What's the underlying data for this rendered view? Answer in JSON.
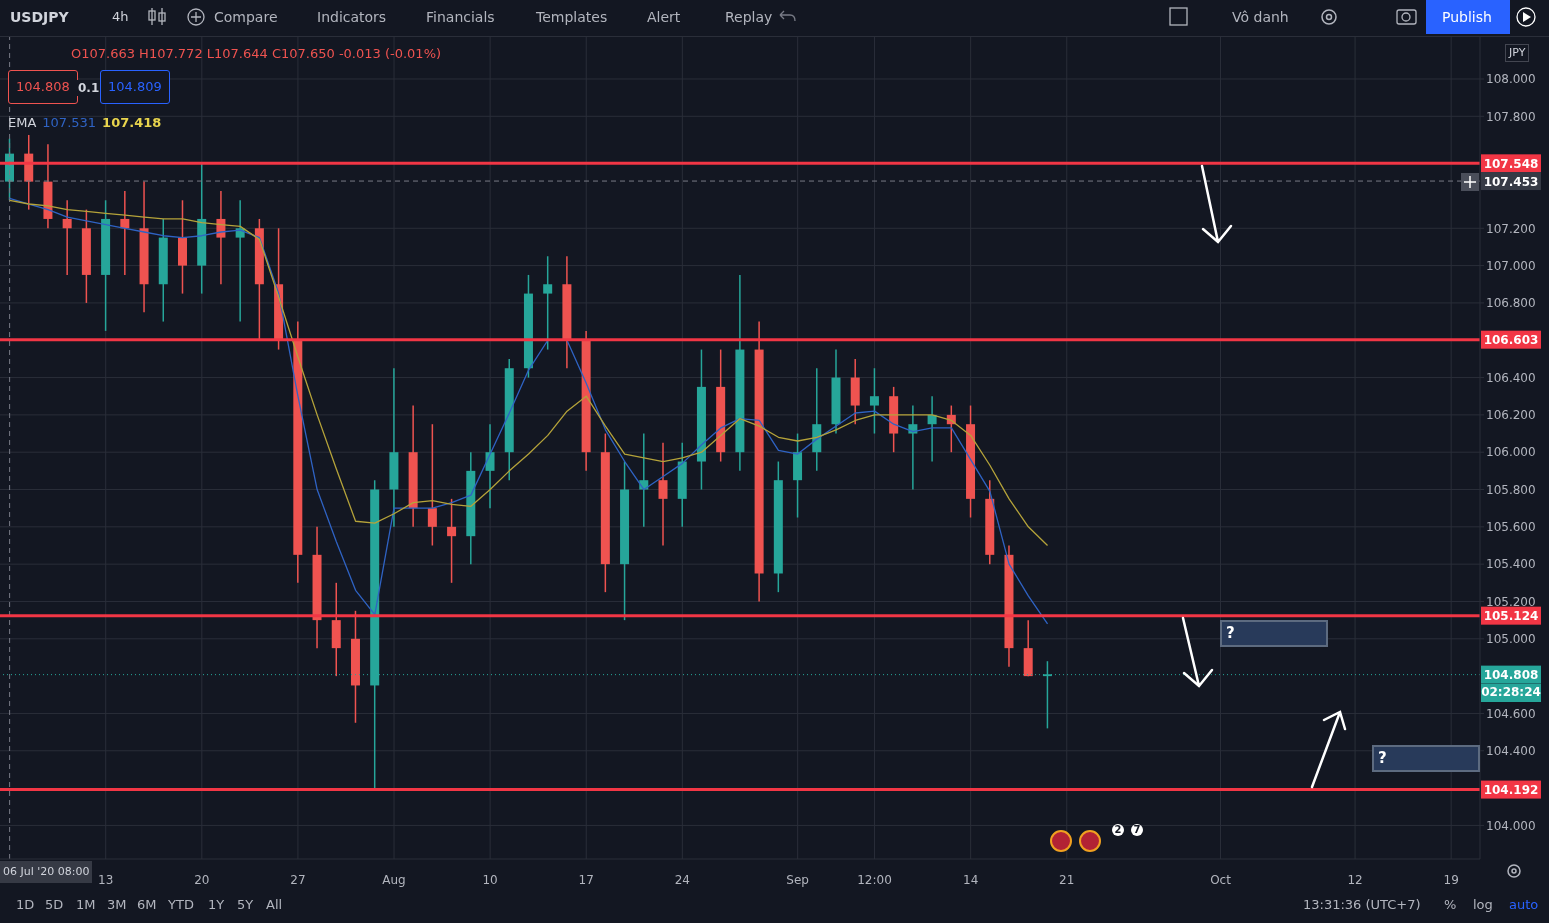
{
  "chart_data": {
    "type": "candlestick",
    "categories": [
      null,
      null,
      null,
      null,
      null,
      "13",
      null,
      null,
      null,
      null,
      "20",
      null,
      null,
      null,
      null,
      "27",
      null,
      null,
      null,
      null,
      "Aug",
      null,
      null,
      null,
      null,
      "10",
      null,
      null,
      null,
      null,
      "17",
      null,
      null,
      null,
      null,
      "24",
      null,
      null,
      null,
      null,
      null,
      "Sep",
      null,
      null,
      null,
      "12:00",
      null,
      null,
      null,
      null,
      "14",
      null,
      null,
      null,
      null,
      "21",
      null,
      null,
      null,
      null,
      null,
      null,
      null,
      "Oct",
      null,
      null,
      null,
      null,
      null,
      null,
      "12",
      null,
      null,
      null,
      null,
      "19",
      null
    ],
    "ohlc": [
      [
        107.45,
        107.68,
        107.35,
        107.6
      ],
      [
        107.6,
        107.7,
        107.3,
        107.45
      ],
      [
        107.45,
        107.65,
        107.2,
        107.25
      ],
      [
        107.25,
        107.35,
        106.95,
        107.2
      ],
      [
        107.2,
        107.3,
        106.8,
        106.95
      ],
      [
        106.95,
        107.35,
        106.65,
        107.25
      ],
      [
        107.25,
        107.4,
        106.95,
        107.2
      ],
      [
        107.2,
        107.45,
        106.75,
        106.9
      ],
      [
        106.9,
        107.25,
        106.7,
        107.15
      ],
      [
        107.15,
        107.35,
        106.85,
        107.0
      ],
      [
        107.0,
        107.55,
        106.85,
        107.25
      ],
      [
        107.25,
        107.4,
        106.9,
        107.15
      ],
      [
        107.15,
        107.35,
        106.7,
        107.2
      ],
      [
        107.2,
        107.25,
        106.6,
        106.9
      ],
      [
        106.9,
        107.2,
        106.55,
        106.6
      ],
      [
        106.6,
        106.7,
        105.3,
        105.45
      ],
      [
        105.45,
        105.6,
        104.95,
        105.1
      ],
      [
        105.1,
        105.3,
        104.8,
        104.95
      ],
      [
        105.0,
        105.15,
        104.55,
        104.75
      ],
      [
        104.75,
        105.85,
        104.19,
        105.8
      ],
      [
        105.8,
        106.45,
        105.6,
        106.0
      ],
      [
        106.0,
        106.25,
        105.6,
        105.7
      ],
      [
        105.7,
        106.15,
        105.5,
        105.6
      ],
      [
        105.6,
        105.75,
        105.3,
        105.55
      ],
      [
        105.55,
        106.0,
        105.4,
        105.9
      ],
      [
        105.9,
        106.15,
        105.7,
        106.0
      ],
      [
        106.0,
        106.5,
        105.85,
        106.45
      ],
      [
        106.45,
        106.95,
        106.4,
        106.85
      ],
      [
        106.85,
        107.05,
        106.55,
        106.9
      ],
      [
        106.9,
        107.05,
        106.45,
        106.6
      ],
      [
        106.6,
        106.65,
        105.9,
        106.0
      ],
      [
        106.0,
        106.1,
        105.25,
        105.4
      ],
      [
        105.4,
        105.95,
        105.1,
        105.8
      ],
      [
        105.8,
        106.1,
        105.6,
        105.85
      ],
      [
        105.85,
        106.05,
        105.5,
        105.75
      ],
      [
        105.75,
        106.05,
        105.6,
        105.95
      ],
      [
        105.95,
        106.55,
        105.8,
        106.35
      ],
      [
        106.35,
        106.55,
        105.95,
        106.0
      ],
      [
        106.0,
        106.95,
        105.9,
        106.55
      ],
      [
        106.55,
        106.7,
        105.2,
        105.35
      ],
      [
        105.35,
        105.95,
        105.25,
        105.85
      ],
      [
        105.85,
        106.1,
        105.65,
        106.0
      ],
      [
        106.0,
        106.45,
        105.9,
        106.15
      ],
      [
        106.15,
        106.55,
        106.1,
        106.4
      ],
      [
        106.4,
        106.5,
        106.15,
        106.25
      ],
      [
        106.25,
        106.45,
        106.1,
        106.3
      ],
      [
        106.3,
        106.35,
        106.0,
        106.1
      ],
      [
        106.1,
        106.25,
        105.8,
        106.15
      ],
      [
        106.15,
        106.3,
        105.95,
        106.2
      ],
      [
        106.2,
        106.25,
        106.0,
        106.15
      ],
      [
        106.15,
        106.25,
        105.65,
        105.75
      ],
      [
        105.75,
        105.85,
        105.4,
        105.45
      ],
      [
        105.45,
        105.5,
        104.85,
        104.95
      ],
      [
        104.95,
        105.1,
        104.8,
        104.8
      ],
      [
        104.8,
        104.88,
        104.52,
        104.81
      ],
      null,
      null,
      null,
      null,
      null,
      null,
      null,
      null,
      null,
      null,
      null,
      null,
      null,
      null,
      null,
      null,
      null,
      null,
      null,
      null,
      null,
      null
    ],
    "colors": [
      "#26a69a",
      "#ef5350",
      "#ef5350",
      "#ef5350",
      "#ef5350",
      "#26a69a",
      "#ef5350",
      "#ef5350",
      "#26a69a",
      "#ef5350",
      "#26a69a",
      "#ef5350",
      "#26a69a",
      "#ef5350",
      "#ef5350",
      "#ef5350",
      "#ef5350",
      "#ef5350",
      "#ef5350",
      "#26a69a",
      "#26a69a",
      "#ef5350",
      "#ef5350",
      "#ef5350",
      "#26a69a",
      "#26a69a",
      "#26a69a",
      "#26a69a",
      "#26a69a",
      "#ef5350",
      "#ef5350",
      "#ef5350",
      "#26a69a",
      "#26a69a",
      "#ef5350",
      "#26a69a",
      "#26a69a",
      "#ef5350",
      "#26a69a",
      "#ef5350",
      "#26a69a",
      "#26a69a",
      "#26a69a",
      "#26a69a",
      "#ef5350",
      "#26a69a",
      "#ef5350",
      "#26a69a",
      "#26a69a",
      "#ef5350",
      "#ef5350",
      "#ef5350",
      "#ef5350",
      "#ef5350",
      "#26a69a",
      null,
      null,
      null,
      null,
      null,
      null,
      null,
      null,
      null,
      null,
      null,
      null,
      null,
      null,
      null,
      null,
      null,
      null,
      null,
      null,
      null,
      null
    ],
    "series": [
      {
        "type": "line",
        "color": "#2f63c4",
        "values": [
          107.36,
          107.33,
          107.3,
          107.26,
          107.24,
          107.22,
          107.2,
          107.18,
          107.16,
          107.15,
          107.16,
          107.18,
          107.19,
          107.15,
          106.85,
          106.3,
          105.8,
          105.52,
          105.26,
          105.13,
          105.7,
          105.7,
          105.7,
          105.73,
          105.77,
          105.99,
          106.21,
          106.44,
          106.6,
          106.6,
          106.37,
          106.12,
          105.95,
          105.8,
          105.87,
          105.94,
          106.04,
          106.13,
          106.18,
          106.17,
          106.01,
          105.99,
          106.07,
          106.14,
          106.21,
          106.22,
          106.15,
          106.11,
          106.13,
          106.13,
          105.96,
          105.79,
          105.4,
          105.23,
          105.08,
          null,
          null,
          null,
          null,
          null,
          null,
          null,
          null,
          null,
          null,
          null,
          null,
          null,
          null,
          null,
          null,
          null,
          null,
          null,
          null,
          null,
          null
        ]
      },
      {
        "type": "line",
        "color": "#b5a33a",
        "values": [
          107.35,
          107.33,
          107.32,
          107.3,
          107.29,
          107.28,
          107.27,
          107.26,
          107.25,
          107.25,
          107.23,
          107.22,
          107.21,
          107.14,
          106.83,
          106.51,
          106.2,
          105.91,
          105.63,
          105.62,
          105.67,
          105.73,
          105.74,
          105.72,
          105.71,
          105.8,
          105.9,
          105.99,
          106.09,
          106.22,
          106.3,
          106.14,
          105.99,
          105.97,
          105.95,
          105.97,
          106.0,
          106.09,
          106.18,
          106.14,
          106.08,
          106.06,
          106.08,
          106.12,
          106.17,
          106.2,
          106.2,
          106.2,
          106.2,
          106.17,
          106.09,
          105.93,
          105.75,
          105.6,
          105.5,
          null,
          null,
          null,
          null,
          null,
          null,
          null,
          null,
          null,
          null,
          null,
          null,
          null,
          null,
          null,
          null,
          null,
          null,
          null,
          null,
          null,
          null
        ]
      }
    ],
    "ylim": [
      103.82,
      108.225
    ],
    "yticks": [
      {
        "value": 104,
        "label": "104.000"
      },
      {
        "value": 104.4,
        "label": "104.400"
      },
      {
        "value": 104.6,
        "label": "104.600"
      },
      {
        "value": 105,
        "label": "105.000"
      },
      {
        "value": 105.2,
        "label": "105.200"
      },
      {
        "value": 105.4,
        "label": "105.400"
      },
      {
        "value": 105.6,
        "label": "105.600"
      },
      {
        "value": 105.8,
        "label": "105.800"
      },
      {
        "value": 106,
        "label": "106.000"
      },
      {
        "value": 106.2,
        "label": "106.200"
      },
      {
        "value": 106.4,
        "label": "106.400"
      },
      {
        "value": 106.8,
        "label": "106.800"
      },
      {
        "value": 107,
        "label": "107.000"
      },
      {
        "value": 107.2,
        "label": "107.200"
      },
      {
        "value": 107.8,
        "label": "107.800"
      },
      {
        "value": 108,
        "label": "108.000"
      }
    ],
    "grid": true,
    "ref_lines": [
      {
        "axis": "y",
        "value": 107.548,
        "label": "107.548",
        "color": "#f23645",
        "line_style": "solid"
      },
      {
        "axis": "y",
        "value": 106.603,
        "label": "106.603",
        "color": "#f23645",
        "line_style": "solid"
      },
      {
        "axis": "y",
        "value": 105.124,
        "label": "105.124",
        "color": "#f23645",
        "line_style": "solid"
      },
      {
        "axis": "y",
        "value": 104.192,
        "label": "104.192",
        "color": "#f23645",
        "line_style": "solid"
      },
      {
        "axis": "y",
        "value": 104.808,
        "label": "104.808",
        "color": "#26a69a",
        "line_style": "dotted"
      },
      {
        "axis": "y",
        "value": 107.453,
        "label": "107.453",
        "color": "#787b86",
        "line_style": "dashed"
      }
    ],
    "annotations": [
      "USDJPY",
      "4h",
      "Compare",
      "Indicators",
      "Financials",
      "Templates",
      "Alert",
      "Replay",
      "Vô danh",
      "Publish",
      "O107.663 H107.772 L107.644 C107.650 -0.013 (-0.01%)",
      "104.808",
      "0.1",
      "104.809",
      "EMA 107.531 107.418",
      "JPY",
      "1D",
      "5D",
      "1M",
      "3M",
      "6M",
      "YTD",
      "1Y",
      "5Y",
      "All",
      "13:31:36 (UTC+7)",
      "%",
      "log",
      "auto",
      "2",
      "7",
      "02:28:24",
      "?",
      "?",
      "06 Jul '20 08:00"
    ]
  }
}
